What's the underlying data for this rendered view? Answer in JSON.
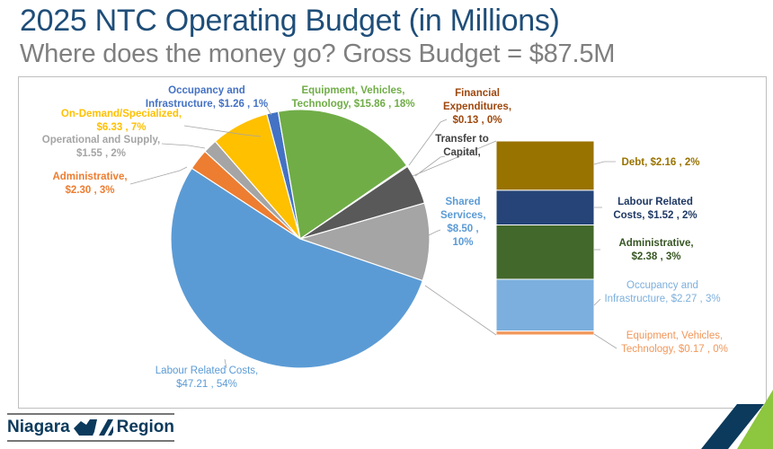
{
  "header": {
    "title": "2025 NTC Operating Budget (in Millions)",
    "subtitle": "Where does the money go? Gross Budget = $87.5M"
  },
  "chart_data": {
    "type": "bar-of-pie",
    "pie": {
      "slices": [
        {
          "name": "Occupancy and Infrastructure",
          "value": 1.26,
          "percent": 1,
          "label": "Occupancy and Infrastructure, $1.26 , 1%",
          "color": "#4472c4"
        },
        {
          "name": "Equipment, Vehicles, Technology",
          "value": 15.86,
          "percent": 18,
          "label": "Equipment, Vehicles, Technology, $15.86 , 18%",
          "color": "#70ad47"
        },
        {
          "name": "Financial Expenditures",
          "value": 0.13,
          "percent": 0,
          "label": "Financial Expenditures, $0.13 , 0%",
          "color": "#9e480e"
        },
        {
          "name": "Transfer to Capital",
          "value": 4.36,
          "label": "Transfer to Capital,",
          "color": "#595959"
        },
        {
          "name": "Shared Services",
          "value": 8.5,
          "percent": 10,
          "label": "Shared Services, $8.50 , 10%",
          "color": "#a5a5a5"
        },
        {
          "name": "Labour Related Costs",
          "value": 47.21,
          "percent": 54,
          "label": "Labour Related Costs, $47.21 , 54%",
          "color": "#5b9bd5"
        },
        {
          "name": "Administrative",
          "value": 2.3,
          "percent": 3,
          "label": "Administrative, $2.30 , 3%",
          "color": "#ed7d31"
        },
        {
          "name": "Operational and Supply",
          "value": 1.55,
          "percent": 2,
          "label": "Operational and Supply, $1.55 , 2%",
          "color": "#a5a5a5"
        },
        {
          "name": "On-Demand/Specialized",
          "value": 6.33,
          "percent": 7,
          "label": "On-Demand/Specialized, $6.33 , 7%",
          "color": "#ffc000"
        }
      ]
    },
    "bar": {
      "breakdown_of": "Shared Services",
      "segments": [
        {
          "name": "Debt",
          "value": 2.16,
          "percent": 2,
          "label": "Debt, $2.16 , 2%",
          "color": "#997300"
        },
        {
          "name": "Labour Related Costs",
          "value": 1.52,
          "percent": 2,
          "label": "Labour Related Costs, $1.52 , 2%",
          "color": "#264478"
        },
        {
          "name": "Administrative",
          "value": 2.38,
          "percent": 3,
          "label": "Administrative, $2.38 , 3%",
          "color": "#43682b"
        },
        {
          "name": "Occupancy and Infrastructure",
          "value": 2.27,
          "percent": 3,
          "label": "Occupancy and Infrastructure, $2.27 , 3%",
          "color": "#7cafdd"
        },
        {
          "name": "Equipment, Vehicles, Technology",
          "value": 0.17,
          "percent": 0,
          "label": "Equipment, Vehicles, Technology, $0.17 , 0%",
          "color": "#f1975a"
        }
      ]
    }
  },
  "footer": {
    "logo_left": "Niagara",
    "logo_right": "Region",
    "accent_navy": "#0b3a5c",
    "accent_green": "#8dc63f"
  }
}
